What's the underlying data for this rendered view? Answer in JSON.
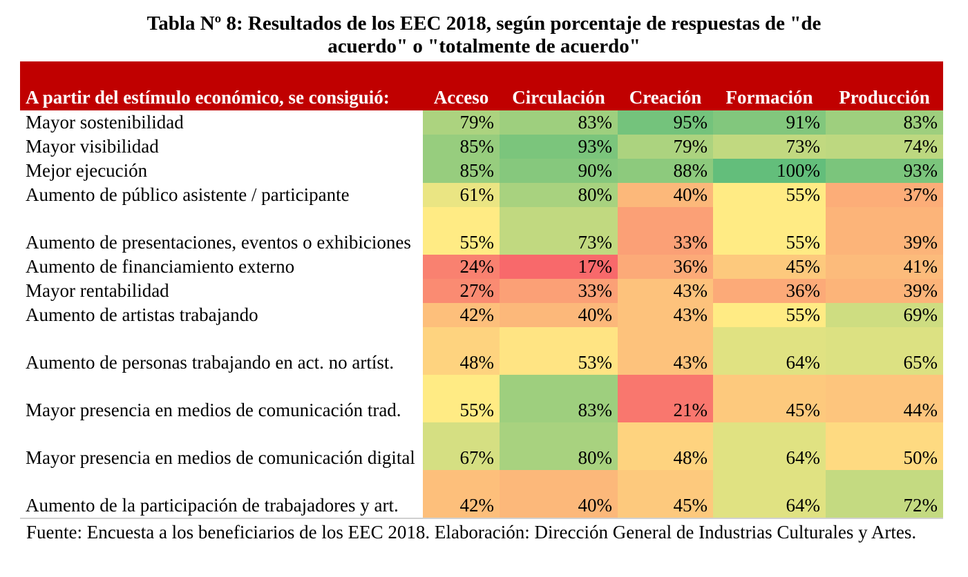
{
  "title": {
    "line1": "Tabla Nº 8: Resultados de los EEC 2018, según porcentaje de respuestas de \"de",
    "line2": "acuerdo\" o \"totalmente de acuerdo\""
  },
  "table": {
    "row_header": "A partir del estímulo económico, se consiguió:",
    "columns": [
      "Acceso",
      "Circulación",
      "Creación",
      "Formación",
      "Producción"
    ],
    "header_color": "#c00000",
    "rows": [
      {
        "label": "Mayor sostenibilidad",
        "values": [
          "79%",
          "83%",
          "95%",
          "91%",
          "83%"
        ]
      },
      {
        "label": "Mayor visibilidad",
        "values": [
          "85%",
          "93%",
          "79%",
          "73%",
          "74%"
        ]
      },
      {
        "label": "Mejor ejecución",
        "values": [
          "85%",
          "90%",
          "88%",
          "100%",
          "93%"
        ]
      },
      {
        "label": "Aumento de público asistente / participante",
        "values": [
          "61%",
          "80%",
          "40%",
          "55%",
          "37%"
        ]
      },
      {
        "label": "Aumento de presentaciones, eventos o exhibiciones",
        "values": [
          "55%",
          "73%",
          "33%",
          "55%",
          "39%"
        ]
      },
      {
        "label": "Aumento de financiamiento externo",
        "values": [
          "24%",
          "17%",
          "36%",
          "45%",
          "41%"
        ]
      },
      {
        "label": "Mayor rentabilidad",
        "values": [
          "27%",
          "33%",
          "43%",
          "36%",
          "39%"
        ]
      },
      {
        "label": "Aumento de artistas trabajando",
        "values": [
          "42%",
          "40%",
          "43%",
          "55%",
          "69%"
        ]
      },
      {
        "label": "Aumento de personas trabajando en act. no artíst.",
        "values": [
          "48%",
          "53%",
          "43%",
          "64%",
          "65%"
        ]
      },
      {
        "label": "Mayor presencia en medios de comunicación trad.",
        "values": [
          "55%",
          "83%",
          "21%",
          "45%",
          "44%"
        ]
      },
      {
        "label": "Mayor presencia en medios de comunicación digital",
        "values": [
          "67%",
          "80%",
          "48%",
          "64%",
          "50%"
        ]
      },
      {
        "label": "Aumento de la participación de trabajadores y art.",
        "values": [
          "42%",
          "40%",
          "45%",
          "64%",
          "72%"
        ]
      }
    ],
    "heatmap_colors": {
      "low": "#f8696b",
      "mid": "#ffeb84",
      "high": "#63be7b"
    }
  },
  "source": "Fuente: Encuesta a los beneficiarios de los EEC 2018. Elaboración: Dirección General de Industrias Culturales y Artes."
}
